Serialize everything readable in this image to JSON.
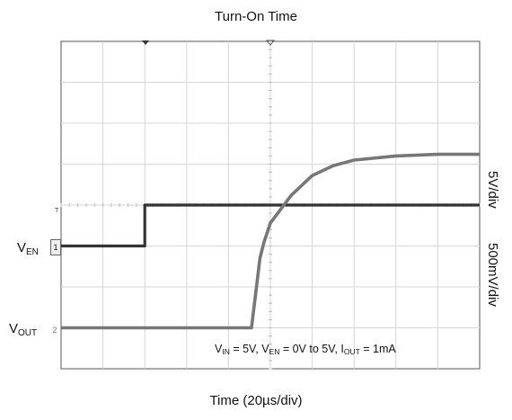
{
  "chart_data": {
    "type": "line",
    "title": "Turn-On Time",
    "xlabel": "Time (20µs/div)",
    "x_divisions": 10,
    "y_divisions": 8,
    "grid": true,
    "x_unit": "div",
    "series": [
      {
        "name": "VEN",
        "label_main": "V",
        "label_sub": "EN",
        "marker": "1",
        "scale_label": "5V/div",
        "color": "#333333",
        "x": [
          0,
          2,
          2,
          10
        ],
        "y": [
          0,
          0,
          5,
          5
        ]
      },
      {
        "name": "VOUT",
        "label_main": "V",
        "label_sub": "OUT",
        "marker": "2",
        "scale_label": "500mV/div",
        "color": "#777777",
        "x": [
          0,
          4.55,
          4.75,
          4.85,
          5.0,
          5.5,
          6.0,
          6.5,
          7.0,
          8.0,
          9.0,
          10
        ],
        "y": [
          0,
          0,
          0.85,
          1.05,
          1.28,
          1.62,
          1.86,
          1.98,
          2.05,
          2.1,
          2.12,
          2.12
        ]
      }
    ],
    "annotation": {
      "vin_main": "V",
      "vin_sub": "IN",
      "vin_val": " = 5V, ",
      "ven_main": "V",
      "ven_sub": "EN",
      "ven_val": " = 0V to 5V, ",
      "iout_main": "I",
      "iout_sub": "OUT",
      "iout_val": " = 1mA"
    }
  }
}
